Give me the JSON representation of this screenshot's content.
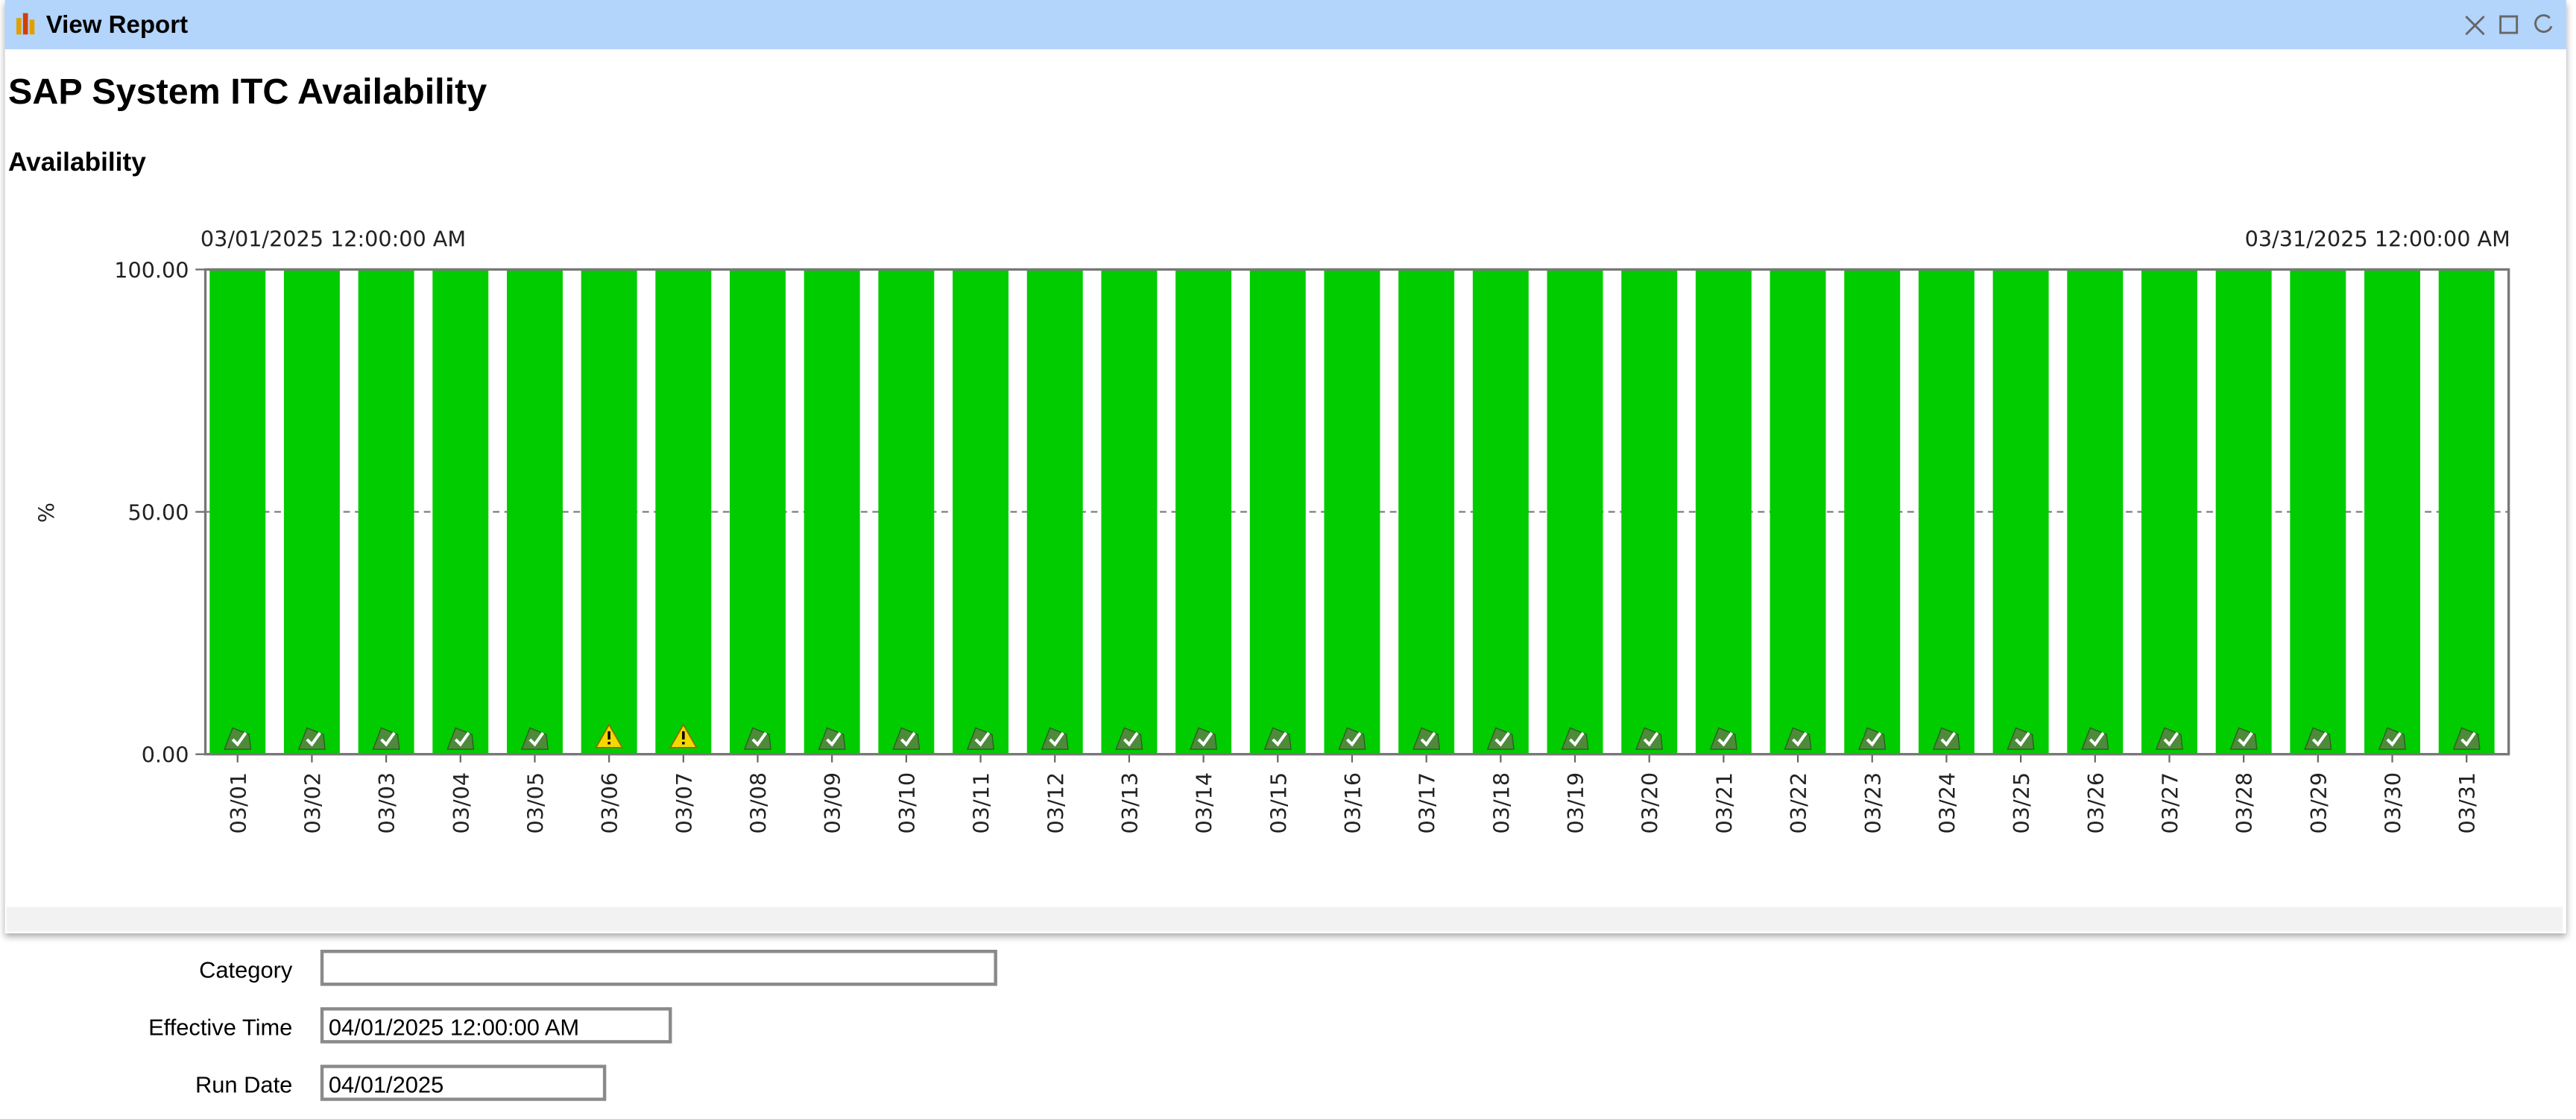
{
  "window": {
    "title": "View Report"
  },
  "report": {
    "title": "SAP System ITC Availability",
    "section": "Availability"
  },
  "chart_data": {
    "type": "bar",
    "start_label": "03/01/2025 12:00:00 AM",
    "end_label": "03/31/2025 12:00:00 AM",
    "y_label": "%",
    "categories": [
      "03/01",
      "03/02",
      "03/03",
      "03/04",
      "03/05",
      "03/06",
      "03/07",
      "03/08",
      "03/09",
      "03/10",
      "03/11",
      "03/12",
      "03/13",
      "03/14",
      "03/15",
      "03/16",
      "03/17",
      "03/18",
      "03/19",
      "03/20",
      "03/21",
      "03/22",
      "03/23",
      "03/24",
      "03/25",
      "03/26",
      "03/27",
      "03/28",
      "03/29",
      "03/30",
      "03/31"
    ],
    "values": [
      100,
      100,
      100,
      100,
      100,
      100,
      100,
      100,
      100,
      100,
      100,
      100,
      100,
      100,
      100,
      100,
      100,
      100,
      100,
      100,
      100,
      100,
      100,
      100,
      100,
      100,
      100,
      100,
      100,
      100,
      100
    ],
    "status": [
      "ok",
      "ok",
      "ok",
      "ok",
      "ok",
      "warning",
      "warning",
      "ok",
      "ok",
      "ok",
      "ok",
      "ok",
      "ok",
      "ok",
      "ok",
      "ok",
      "ok",
      "ok",
      "ok",
      "ok",
      "ok",
      "ok",
      "ok",
      "ok",
      "ok",
      "ok",
      "ok",
      "ok",
      "ok",
      "ok",
      "ok"
    ],
    "color": "#00cc00",
    "ylim": [
      0,
      100
    ],
    "yticks": [
      {
        "value": 0,
        "label": "0.00"
      },
      {
        "value": 50,
        "label": "50.00"
      },
      {
        "value": 100,
        "label": "100.00"
      }
    ],
    "grid": true
  },
  "form": {
    "fields": [
      {
        "label": "Category",
        "value": ""
      },
      {
        "label": "Effective Time",
        "value": "04/01/2025 12:00:00 AM"
      },
      {
        "label": "Run Date",
        "value": "04/01/2025"
      }
    ]
  }
}
